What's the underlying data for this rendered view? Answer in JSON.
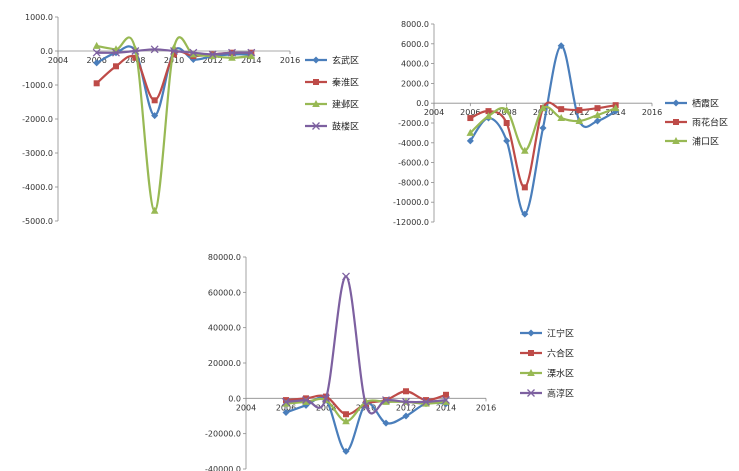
{
  "chart_data": [
    {
      "type": "line",
      "x": [
        2006,
        2007,
        2008,
        2009,
        2010,
        2011,
        2012,
        2013,
        2014
      ],
      "xticks": [
        2004,
        2006,
        2008,
        2010,
        2012,
        2014,
        2016
      ],
      "xtick_labels": [
        "2004",
        "2006",
        "2008",
        "2010",
        "2012",
        "2014",
        "2016"
      ],
      "xlim": [
        2004,
        2016
      ],
      "ylim": [
        -5000,
        1000
      ],
      "yticks": [
        1000,
        0,
        -1000,
        -2000,
        -3000,
        -4000,
        -5000
      ],
      "ytick_labels": [
        "1000.0",
        "0.0",
        "-1000.0",
        "-2000.0",
        "-3000.0",
        "-4000.0",
        "-5000.0"
      ],
      "legend_position": "right",
      "series": [
        {
          "name": "玄武区",
          "color": "#4a7ebb",
          "marker": "diamond",
          "values": [
            -350,
            -50,
            0,
            -1900,
            0,
            -250,
            -150,
            -100,
            -100
          ]
        },
        {
          "name": "秦淮区",
          "color": "#be4b48",
          "marker": "square",
          "values": [
            -950,
            -450,
            -200,
            -1450,
            -100,
            -150,
            -100,
            -50,
            -50
          ]
        },
        {
          "name": "建邺区",
          "color": "#98b954",
          "marker": "triangle",
          "values": [
            150,
            50,
            50,
            -4700,
            100,
            -100,
            -150,
            -200,
            -150
          ]
        },
        {
          "name": "鼓楼区",
          "color": "#7d60a0",
          "marker": "cross",
          "values": [
            -50,
            -50,
            0,
            50,
            0,
            -50,
            -100,
            -50,
            -50
          ]
        }
      ]
    },
    {
      "type": "line",
      "x": [
        2006,
        2007,
        2008,
        2009,
        2010,
        2011,
        2012,
        2013,
        2014
      ],
      "xticks": [
        2004,
        2006,
        2008,
        2010,
        2012,
        2014,
        2016
      ],
      "xtick_labels": [
        "2004",
        "2006",
        "2008",
        "2010",
        "2012",
        "2014",
        "2016"
      ],
      "xlim": [
        2004,
        2016
      ],
      "ylim": [
        -12000,
        8000
      ],
      "yticks": [
        8000,
        6000,
        4000,
        2000,
        0,
        -2000,
        -4000,
        -6000,
        -8000,
        -10000,
        -12000
      ],
      "ytick_labels": [
        "8000.0",
        "6000.0",
        "4000.0",
        "2000.0",
        "0.0",
        "-2000.0",
        "-4000.0",
        "-6000.0",
        "-8000.0",
        "-10000.0",
        "-12000.0"
      ],
      "legend_position": "right",
      "series": [
        {
          "name": "栖霞区",
          "color": "#4a7ebb",
          "marker": "diamond",
          "values": [
            -3800,
            -1500,
            -3800,
            -11200,
            -2500,
            5800,
            -1800,
            -1800,
            -800
          ]
        },
        {
          "name": "雨花台区",
          "color": "#be4b48",
          "marker": "square",
          "values": [
            -1500,
            -800,
            -2000,
            -8500,
            -500,
            -600,
            -700,
            -500,
            -200
          ]
        },
        {
          "name": "浦口区",
          "color": "#98b954",
          "marker": "triangle",
          "values": [
            -3000,
            -1300,
            -700,
            -4800,
            -500,
            -1500,
            -1800,
            -1200,
            -500
          ]
        }
      ]
    },
    {
      "type": "line",
      "x": [
        2006,
        2007,
        2008,
        2009,
        2010,
        2011,
        2012,
        2013,
        2014
      ],
      "xticks": [
        2004,
        2006,
        2008,
        2010,
        2012,
        2014,
        2016
      ],
      "xtick_labels": [
        "2004",
        "2006",
        "2008",
        "2010",
        "2012",
        "2014",
        "2016"
      ],
      "xlim": [
        2004,
        2016
      ],
      "ylim": [
        -40000,
        80000
      ],
      "yticks": [
        80000,
        60000,
        40000,
        20000,
        0,
        -20000,
        -40000
      ],
      "ytick_labels": [
        "80000.0",
        "60000.0",
        "40000.0",
        "20000.0",
        "0.0",
        "-20000.0",
        "-40000.0"
      ],
      "legend_position": "right",
      "series": [
        {
          "name": "江宁区",
          "color": "#4a7ebb",
          "marker": "diamond",
          "values": [
            -8000,
            -4000,
            -1000,
            -30000,
            -3000,
            -14000,
            -10000,
            -3000,
            -3000
          ]
        },
        {
          "name": "六合区",
          "color": "#be4b48",
          "marker": "square",
          "values": [
            -1000,
            0,
            1000,
            -9000,
            -3000,
            -1000,
            4000,
            -1000,
            2000
          ]
        },
        {
          "name": "溧水区",
          "color": "#98b954",
          "marker": "triangle",
          "values": [
            -3000,
            -2000,
            -1000,
            -13000,
            -2000,
            -2000,
            -2000,
            -3000,
            -2000
          ]
        },
        {
          "name": "高淳区",
          "color": "#7d60a0",
          "marker": "cross",
          "values": [
            -2000,
            -1000,
            0,
            69000,
            -4000,
            -1000,
            -2000,
            -2000,
            -1000
          ]
        }
      ]
    }
  ]
}
